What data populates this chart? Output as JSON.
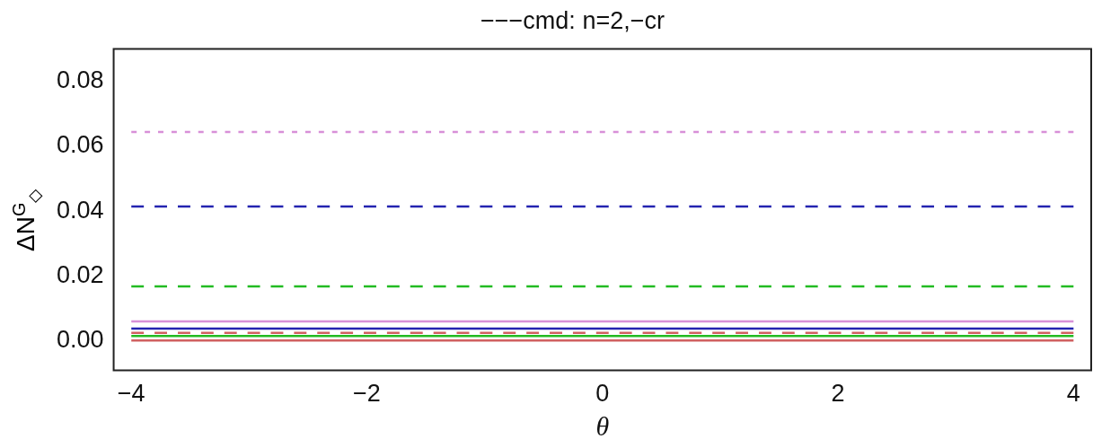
{
  "chart_data": {
    "type": "line",
    "title": "−−−cmd: n=2,−cr",
    "xlabel": "θ",
    "ylabel": "ΔN$^{G}$$_{◇}$",
    "x": [
      -4,
      4
    ],
    "xlim": [
      -4.15,
      4.15
    ],
    "xticks": [
      {
        "value": -4,
        "label": "−4"
      },
      {
        "value": -2,
        "label": "−2"
      },
      0,
      2,
      4
    ],
    "ylim": [
      -0.009,
      0.09
    ],
    "yticks": [
      {
        "value": 0,
        "label": "0.00"
      },
      {
        "value": 0.02,
        "label": "0.02"
      },
      {
        "value": 0.04,
        "label": "0.04"
      },
      {
        "value": 0.06,
        "label": "0.06"
      },
      {
        "value": 0.08,
        "label": "0.08"
      }
    ],
    "grid": false,
    "legend": false,
    "marker": "none",
    "series": [
      {
        "color": "#d890d8",
        "line_style": "dotted",
        "values": [
          0.0644,
          0.0644
        ]
      },
      {
        "color": "#2424b0",
        "line_style": "dashed",
        "values": [
          0.0415,
          0.0415
        ]
      },
      {
        "color": "#22bb22",
        "line_style": "dashed",
        "values": [
          0.0169,
          0.0169
        ]
      },
      {
        "color": "#d890d8",
        "line_style": "solid",
        "values": [
          0.0061,
          0.0061
        ]
      },
      {
        "color": "#2424b0",
        "line_style": "solid",
        "values": [
          0.0039,
          0.0039
        ]
      },
      {
        "color": "#d06060",
        "line_style": "dashed",
        "values": [
          0.0026,
          0.0026
        ]
      },
      {
        "color": "#22bb22",
        "line_style": "solid",
        "values": [
          0.0016,
          0.0016
        ]
      },
      {
        "color": "#d06060",
        "line_style": "solid",
        "values": [
          0.0002,
          0.0002
        ]
      }
    ]
  }
}
